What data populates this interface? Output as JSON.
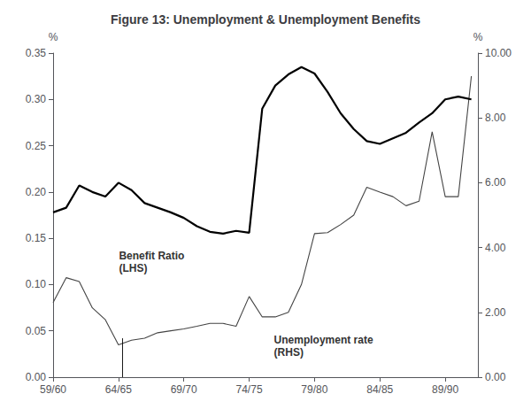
{
  "chart_data": {
    "type": "line",
    "title": "Figure 13: Unemployment & Unemployment Benefits",
    "x": [
      1959,
      1960,
      1961,
      1962,
      1963,
      1964,
      1965,
      1966,
      1967,
      1968,
      1969,
      1970,
      1971,
      1972,
      1973,
      1974,
      1975,
      1976,
      1977,
      1978,
      1979,
      1980,
      1981,
      1982,
      1983,
      1984,
      1985,
      1986,
      1987,
      1988,
      1989,
      1990,
      1991
    ],
    "xlim": [
      1959,
      1991.5
    ],
    "xticks": [
      {
        "value": 1959,
        "label": "59/60"
      },
      {
        "value": 1964,
        "label": "64/65"
      },
      {
        "value": 1969,
        "label": "69/70"
      },
      {
        "value": 1974,
        "label": "74/75"
      },
      {
        "value": 1979,
        "label": "79/80"
      },
      {
        "value": 1984,
        "label": "84/85"
      },
      {
        "value": 1989,
        "label": "89/90"
      }
    ],
    "ylabel": "%",
    "ylim": [
      0,
      0.35
    ],
    "yticks": [
      {
        "value": 0,
        "label": "0.00"
      },
      0.05,
      {
        "value": 0.1,
        "label": "0.10"
      },
      0.15,
      {
        "value": 0.2,
        "label": "0.20"
      },
      0.25,
      {
        "value": 0.3,
        "label": "0.30"
      },
      0.35
    ],
    "y2label": "%",
    "y2lim": [
      0,
      10.0
    ],
    "y2ticks": [
      {
        "value": 0,
        "label": "0.00"
      },
      {
        "value": 2.0,
        "label": "2.00"
      },
      {
        "value": 4.0,
        "label": "4.00"
      },
      {
        "value": 6.0,
        "label": "6.00"
      },
      {
        "value": 8.0,
        "label": "8.00"
      },
      {
        "value": 10.0,
        "label": "10.00"
      }
    ],
    "grid": false,
    "series": [
      {
        "name": "Benefit Ratio\n(LHS)",
        "color": "#000000",
        "values": [
          0.178,
          0.183,
          0.207,
          0.2,
          0.195,
          0.21,
          0.202,
          0.188,
          0.183,
          0.178,
          0.172,
          0.163,
          0.157,
          0.155,
          0.158,
          0.156,
          0.29,
          0.315,
          0.327,
          0.335,
          0.328,
          0.308,
          0.285,
          0.268,
          0.255,
          0.252,
          0.258,
          0.264,
          0.275,
          0.285,
          0.3,
          0.303,
          0.3
        ]
      },
      {
        "name": "Unemployment rate\n(RHS)",
        "color": "#444444",
        "axis": "y2",
        "values": [
          2.3,
          3.07,
          2.95,
          2.14,
          1.77,
          1.0,
          1.14,
          1.2,
          1.37,
          1.43,
          1.49,
          1.57,
          1.66,
          1.66,
          1.57,
          2.49,
          1.86,
          1.86,
          2.0,
          2.86,
          4.43,
          4.46,
          4.71,
          5.0,
          5.86,
          5.71,
          5.57,
          5.29,
          5.43,
          7.57,
          5.57,
          5.57,
          9.29
        ]
      }
    ],
    "vertical_line": 1964.3
  }
}
